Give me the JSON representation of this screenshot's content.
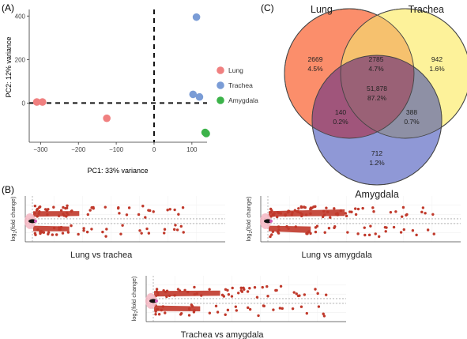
{
  "chart_data": [
    {
      "panel": "(A)",
      "type": "scatter",
      "xlabel": "PC1: 33% variance",
      "ylabel": "PC2: 12% variance",
      "xticks": [
        -300,
        -200,
        -100,
        0,
        100
      ],
      "yticks": [
        0,
        200,
        400
      ],
      "xlim": [
        -330,
        140
      ],
      "ylim": [
        -180,
        430
      ],
      "reference_lines": "dashed at x=0 and y=0",
      "legend_position": "right",
      "series": [
        {
          "name": "Lung",
          "color": "#F08080",
          "points": [
            [
              -310,
              5
            ],
            [
              -295,
              5
            ],
            [
              -125,
              -70
            ]
          ]
        },
        {
          "name": "Trachea",
          "color": "#7A9CD6",
          "points": [
            [
              112,
              395
            ],
            [
              103,
              40
            ],
            [
              120,
              28
            ]
          ]
        },
        {
          "name": "Amygdala",
          "color": "#3CB34A",
          "points": [
            [
              135,
              -135
            ],
            [
              138,
              -140
            ]
          ]
        }
      ]
    },
    {
      "panel": "(B)",
      "type": "scatter",
      "ylabel_prefix": "log",
      "ylabel_sub": "2",
      "ylabel_suffix": "(fold change)",
      "plots": [
        {
          "title": "Lung vs trachea"
        },
        {
          "title": "Lung vs amygdala"
        },
        {
          "title": "Trachea vs amygdala"
        }
      ]
    },
    {
      "panel": "(C)",
      "type": "venn",
      "sets": [
        {
          "name": "Lung",
          "color": "#FB8E6B"
        },
        {
          "name": "Trachea",
          "color": "#FDF29A"
        },
        {
          "name": "Amygdala",
          "color": "#8F98D6"
        }
      ],
      "regions": [
        {
          "sets": [
            "Lung"
          ],
          "count": "2669",
          "percent": "4.5%"
        },
        {
          "sets": [
            "Lung",
            "Trachea"
          ],
          "count": "2785",
          "percent": "4.7%"
        },
        {
          "sets": [
            "Trachea"
          ],
          "count": "942",
          "percent": "1.6%"
        },
        {
          "sets": [
            "Lung",
            "Trachea",
            "Amygdala"
          ],
          "count": "51,878",
          "percent": "87.2%"
        },
        {
          "sets": [
            "Lung",
            "Amygdala"
          ],
          "count": "140",
          "percent": "0.2%"
        },
        {
          "sets": [
            "Trachea",
            "Amygdala"
          ],
          "count": "388",
          "percent": "0.7%"
        },
        {
          "sets": [
            "Amygdala"
          ],
          "count": "712",
          "percent": "1.2%"
        }
      ]
    }
  ]
}
